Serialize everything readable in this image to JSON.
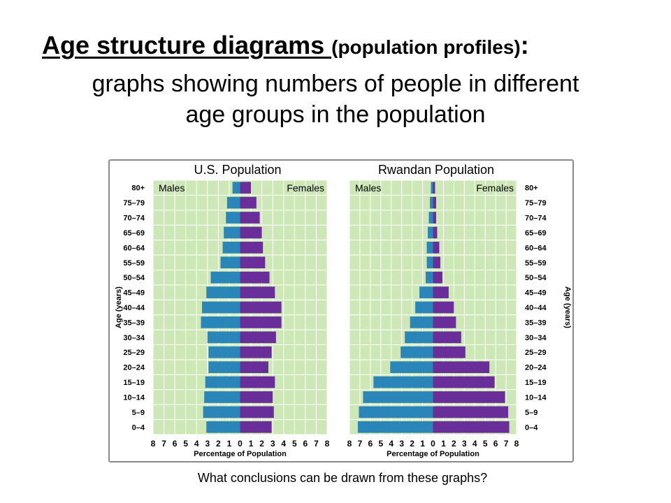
{
  "slide": {
    "title_main": "Age structure diagrams ",
    "title_paren": "(population profiles)",
    "title_colon": ":",
    "subtitle": "graphs showing numbers of people in different age groups in the population",
    "question": "What conclusions can be drawn from these graphs?"
  },
  "colors": {
    "plot_bg": "#cde8b6",
    "grid": "#ffffff",
    "male": "#2a86b8",
    "female": "#6a2e9a",
    "frame": "#8a8a8a"
  },
  "chart_data": [
    {
      "type": "bar",
      "title": "U.S. Population",
      "orientation": "horizontal-pyramid",
      "categories": [
        "80+",
        "75–79",
        "70–74",
        "65–69",
        "60–64",
        "55–59",
        "50–54",
        "45–49",
        "40–44",
        "35–39",
        "30–34",
        "25–29",
        "20–24",
        "15–19",
        "10–14",
        "5–9",
        "0–4"
      ],
      "series": [
        {
          "name": "Males",
          "side": "left",
          "values": [
            0.7,
            1.2,
            1.3,
            1.5,
            1.6,
            1.8,
            2.7,
            3.1,
            3.5,
            3.6,
            3.0,
            2.9,
            2.9,
            3.2,
            3.3,
            3.4,
            3.1
          ]
        },
        {
          "name": "Females",
          "side": "right",
          "values": [
            1.0,
            1.5,
            1.8,
            2.0,
            2.1,
            2.3,
            2.7,
            3.2,
            3.8,
            3.8,
            3.3,
            2.9,
            2.6,
            3.2,
            3.0,
            3.1,
            2.9
          ]
        }
      ],
      "xlim": [
        -8,
        8
      ],
      "xticks": [
        "8",
        "7",
        "6",
        "5",
        "4",
        "3",
        "2",
        "1",
        "0",
        "1",
        "2",
        "3",
        "4",
        "5",
        "6",
        "7",
        "8"
      ],
      "xlabel": "Percentage of Population",
      "ylabel": "Age (years)",
      "grid": true
    },
    {
      "type": "bar",
      "title": "Rwandan Population",
      "orientation": "horizontal-pyramid",
      "categories": [
        "80+",
        "75–79",
        "70–74",
        "65–69",
        "60–64",
        "55–59",
        "50–54",
        "45–49",
        "40–44",
        "35–39",
        "30–34",
        "25–29",
        "20–24",
        "15–19",
        "10–14",
        "5–9",
        "0–4"
      ],
      "series": [
        {
          "name": "Males",
          "side": "left",
          "values": [
            0.2,
            0.3,
            0.4,
            0.5,
            0.6,
            0.6,
            0.7,
            1.3,
            1.7,
            2.2,
            2.7,
            3.1,
            4.1,
            5.7,
            6.7,
            7.1,
            7.2
          ]
        },
        {
          "name": "Females",
          "side": "right",
          "values": [
            0.2,
            0.3,
            0.3,
            0.4,
            0.6,
            0.7,
            0.9,
            1.5,
            2.0,
            2.2,
            2.7,
            3.1,
            5.4,
            5.9,
            6.9,
            7.2,
            7.3
          ]
        }
      ],
      "xlim": [
        -8,
        8
      ],
      "xticks": [
        "8",
        "7",
        "6",
        "5",
        "4",
        "3",
        "2",
        "1",
        "0",
        "1",
        "2",
        "3",
        "4",
        "5",
        "6",
        "7",
        "8"
      ],
      "xlabel": "Percentage of Population",
      "ylabel": "Age (years)",
      "grid": true
    }
  ]
}
